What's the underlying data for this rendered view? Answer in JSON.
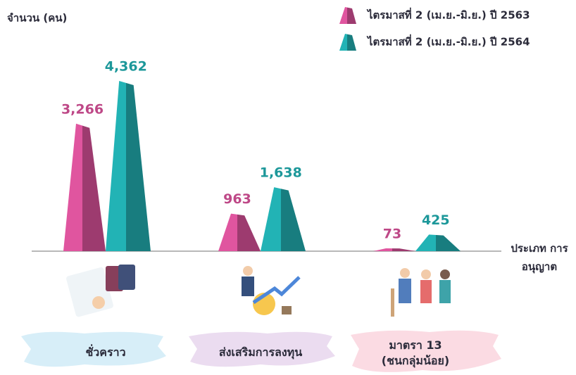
{
  "chart_data": {
    "type": "bar",
    "y_label": "จำนวน (คน)",
    "x_label": "ประเภท การอนุญาต",
    "categories": [
      "ชั่วคราว",
      "ส่งเสริมการลงทุน",
      "มาตรา 13 (ชนกลุ่มน้อย)"
    ],
    "series": [
      {
        "name": "ไตรมาสที่ 2 (เม.ย.-มิ.ย.) ปี 2563",
        "color": "#e0559f",
        "values": [
          3266,
          963,
          73
        ],
        "value_labels": [
          "3,266",
          "963",
          "73"
        ]
      },
      {
        "name": "ไตรมาสที่ 2 (เม.ย.-มิ.ย.) ปี 2564",
        "color": "#22b3b5",
        "values": [
          4362,
          1638,
          425
        ],
        "value_labels": [
          "4,362",
          "1,638",
          "425"
        ]
      }
    ],
    "legend": "top-right"
  }
}
